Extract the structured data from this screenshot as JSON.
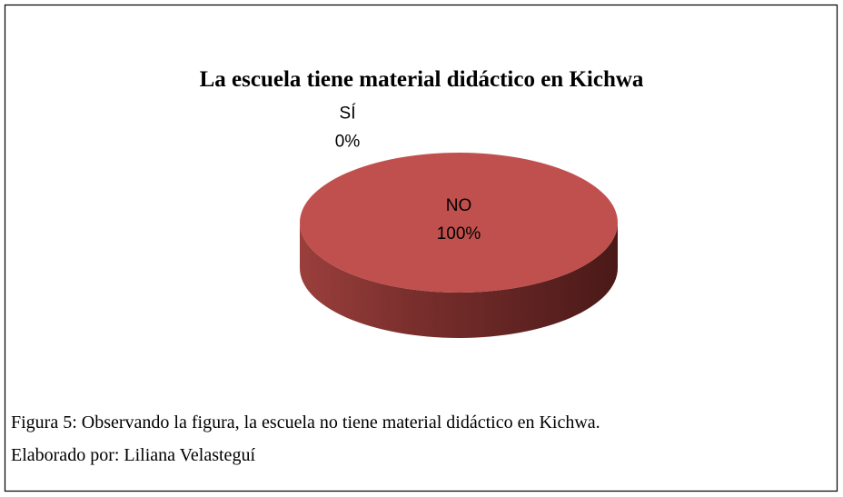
{
  "chart_data": {
    "type": "pie",
    "title": "La escuela tiene material didáctico en Kichwa",
    "categories": [
      "SÍ",
      "NO"
    ],
    "values": [
      0,
      100
    ],
    "value_labels": [
      "0%",
      "100%"
    ],
    "colors": [
      "#4f81bd",
      "#c0504d"
    ],
    "three_d": true
  },
  "caption": [
    "Figura 5: Observando la figura, la escuela no tiene material didáctico en Kichwa.",
    "Elaborado por: Liliana Velasteguí"
  ]
}
